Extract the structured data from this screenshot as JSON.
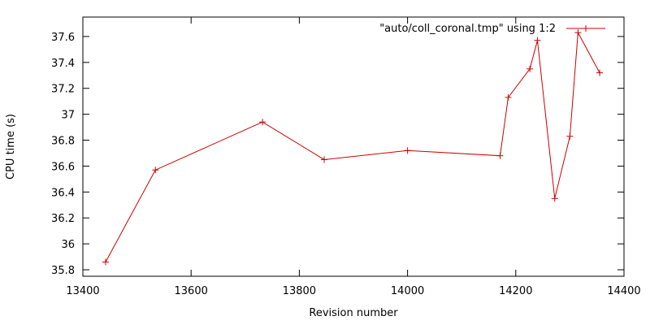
{
  "chart_data": {
    "type": "line",
    "xlabel": "Revision number",
    "ylabel": "CPU time (s)",
    "xlim": [
      13400,
      14400
    ],
    "ylim": [
      35.75,
      37.75
    ],
    "x_ticks": [
      13400,
      13600,
      13800,
      14000,
      14200,
      14400
    ],
    "x_tick_labels": [
      "13400",
      "13600",
      "13800",
      "14000",
      "14200",
      "14400"
    ],
    "y_ticks": [
      35.8,
      36,
      36.2,
      36.4,
      36.6,
      36.8,
      37,
      37.2,
      37.4,
      37.6
    ],
    "y_tick_labels": [
      "35.8",
      "36",
      "36.2",
      "36.4",
      "36.6",
      "36.8",
      "37",
      "37.2",
      "37.4",
      "37.6"
    ],
    "grid": false,
    "legend_position": "top-right",
    "color": "#cc0000",
    "series": [
      {
        "name": "\"auto/coll_coronal.tmp\" using 1:2",
        "x": [
          13442,
          13534,
          13732,
          13846,
          14000,
          14171,
          14186,
          14226,
          14240,
          14272,
          14300,
          14315,
          14355
        ],
        "y": [
          35.86,
          36.57,
          36.94,
          36.65,
          36.72,
          36.68,
          37.13,
          37.35,
          37.57,
          36.35,
          36.83,
          37.63,
          37.32
        ]
      }
    ]
  }
}
